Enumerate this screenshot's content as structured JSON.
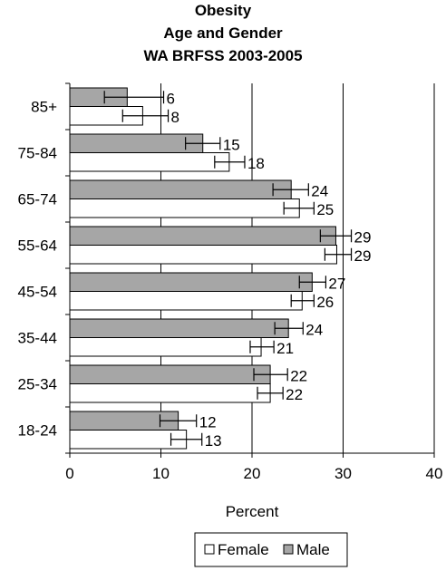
{
  "chart_data": {
    "type": "bar",
    "orientation": "horizontal",
    "title": [
      "Obesity",
      "Age and Gender",
      "WA BRFSS 2003-2005"
    ],
    "xlabel": "Percent",
    "ylabel": "",
    "xlim": [
      0,
      40
    ],
    "xticks": [
      0,
      10,
      20,
      30,
      40
    ],
    "grid": "vertical",
    "legend_position": "bottom",
    "categories": [
      "85+",
      "75-84",
      "65-74",
      "55-64",
      "45-54",
      "35-44",
      "25-34",
      "18-24"
    ],
    "series": [
      {
        "name": "Male",
        "color": "#a6a6a6",
        "values": [
          6.3,
          14.6,
          24.3,
          29.2,
          26.6,
          24.0,
          22.0,
          11.9
        ],
        "labels": [
          "6",
          "15",
          "24",
          "29",
          "27",
          "24",
          "22",
          "12"
        ],
        "error_low": [
          3.8,
          12.7,
          22.3,
          27.5,
          25.2,
          22.5,
          20.2,
          9.9
        ],
        "error_high": [
          10.3,
          16.5,
          26.2,
          30.9,
          28.1,
          25.6,
          23.9,
          13.9
        ]
      },
      {
        "name": "Female",
        "color": "#ffffff",
        "values": [
          8.0,
          17.5,
          25.2,
          29.3,
          25.5,
          21.0,
          22.0,
          12.8
        ],
        "labels": [
          "8",
          "18",
          "25",
          "29",
          "26",
          "21",
          "22",
          "13"
        ],
        "error_low": [
          5.8,
          15.9,
          23.5,
          28.0,
          24.3,
          19.8,
          20.6,
          11.1
        ],
        "error_high": [
          10.8,
          19.2,
          26.8,
          30.9,
          26.8,
          22.4,
          23.4,
          14.5
        ]
      }
    ]
  }
}
